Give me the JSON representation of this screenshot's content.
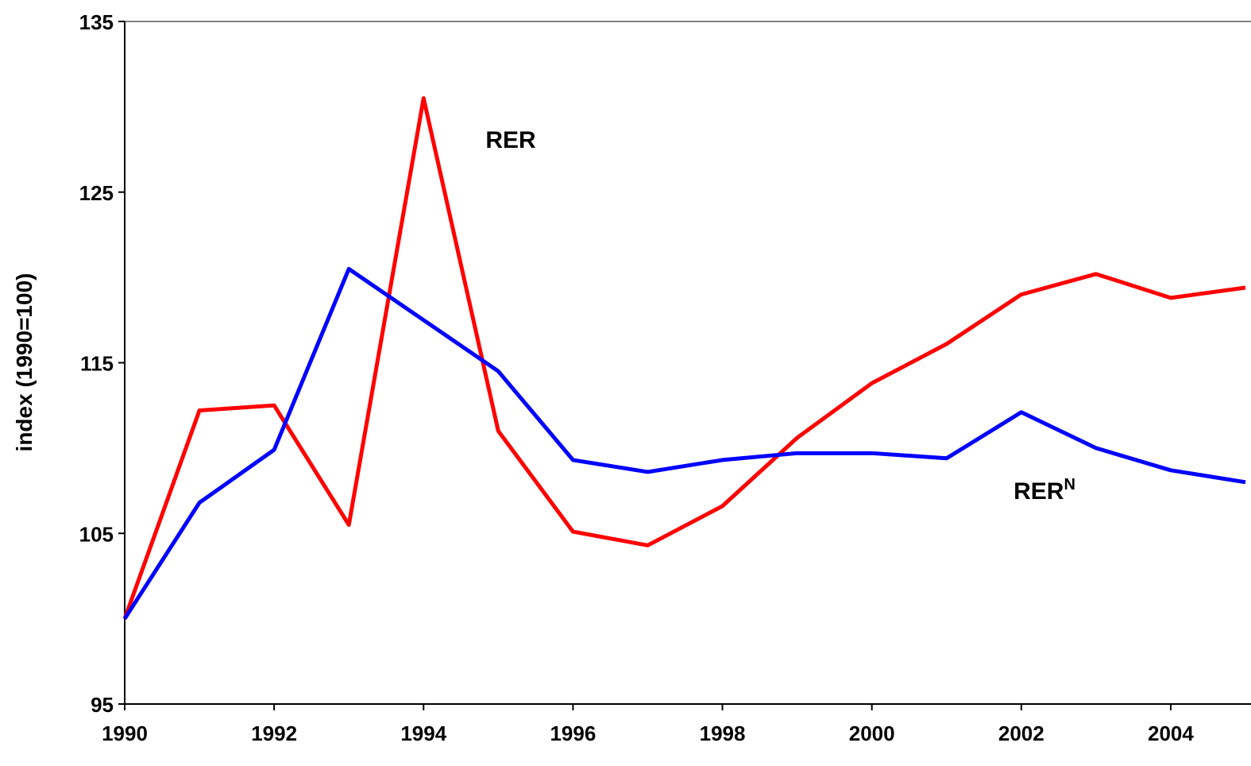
{
  "chart_data": {
    "type": "line",
    "y_label": "index (1990=100)",
    "x": [
      1990,
      1991,
      1992,
      1993,
      1994,
      1995,
      1996,
      1997,
      1998,
      1999,
      2000,
      2001,
      2002,
      2003,
      2004,
      2005
    ],
    "series": [
      {
        "name": "RER",
        "color": "#ff0000",
        "values": [
          100,
          112.2,
          112.5,
          105.5,
          130.5,
          111.0,
          105.1,
          104.3,
          106.6,
          110.6,
          113.8,
          116.1,
          119.0,
          120.2,
          118.8,
          119.4
        ]
      },
      {
        "name": "RER",
        "name_superscript": "N",
        "color": "#0000ff",
        "values": [
          100,
          106.8,
          109.9,
          120.5,
          117.5,
          114.5,
          109.3,
          108.6,
          109.3,
          109.7,
          109.7,
          109.4,
          112.1,
          110.0,
          108.7,
          108.0
        ]
      }
    ],
    "xlim": [
      1990,
      2005
    ],
    "xticks": [
      1990,
      1992,
      1994,
      1996,
      1998,
      2000,
      2002,
      2004
    ],
    "ylim": [
      95,
      135
    ],
    "yticks": [
      95,
      105,
      115,
      125,
      135
    ],
    "grid": false
  }
}
